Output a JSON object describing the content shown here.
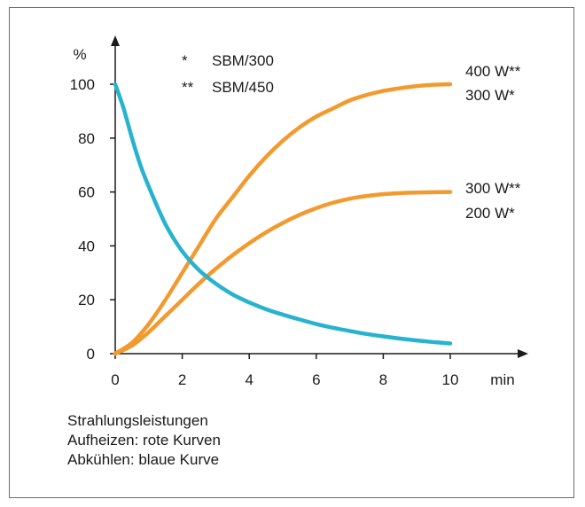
{
  "chart_data": {
    "type": "line",
    "y_unit_label": "%",
    "x_unit_label": "min",
    "xlim": [
      0,
      10
    ],
    "ylim": [
      0,
      100
    ],
    "x_ticks": [
      "0",
      "2",
      "4",
      "6",
      "8",
      "10"
    ],
    "y_ticks": [
      "0",
      "20",
      "40",
      "60",
      "80",
      "100"
    ],
    "legend": [
      {
        "symbol": "*",
        "label": "SBM/300"
      },
      {
        "symbol": "**",
        "label": "SBM/450"
      }
    ],
    "series": [
      {
        "labels": [
          "400 W**",
          "300 W*"
        ],
        "color": "#f39a2f",
        "x": [
          0,
          0.5,
          1,
          1.5,
          2,
          2.5,
          3,
          3.5,
          4,
          4.5,
          5,
          5.5,
          6,
          6.5,
          7,
          7.5,
          8,
          8.5,
          9,
          9.5,
          10
        ],
        "y": [
          0,
          4,
          11,
          20,
          30,
          40,
          50,
          58,
          66,
          73,
          79,
          84,
          88,
          91,
          94,
          96,
          97.5,
          98.5,
          99.3,
          99.8,
          100
        ]
      },
      {
        "labels": [
          "300 W**",
          "200 W*"
        ],
        "color": "#f39a2f",
        "x": [
          0,
          0.5,
          1,
          1.5,
          2,
          2.5,
          3,
          3.5,
          4,
          4.5,
          5,
          5.5,
          6,
          6.5,
          7,
          7.5,
          8,
          8.5,
          9,
          9.5,
          10
        ],
        "y": [
          0,
          3,
          8,
          14,
          20,
          26,
          31.5,
          36.5,
          41,
          45,
          48.5,
          51.5,
          54,
          56,
          57.5,
          58.5,
          59.2,
          59.6,
          59.8,
          59.9,
          60
        ]
      },
      {
        "labels": [],
        "color": "#27b3cf",
        "x": [
          0,
          0.25,
          0.5,
          0.75,
          1,
          1.5,
          2,
          2.5,
          3,
          3.5,
          4,
          4.5,
          5,
          5.5,
          6,
          6.5,
          7,
          7.5,
          8,
          8.5,
          9,
          9.5,
          10
        ],
        "y": [
          100,
          91,
          80,
          70,
          62,
          48,
          38,
          31,
          26,
          22,
          19,
          16.5,
          14.5,
          12.7,
          11,
          9.6,
          8.4,
          7.3,
          6.4,
          5.6,
          4.9,
          4.3,
          3.8
        ]
      }
    ]
  },
  "caption": {
    "line1": "Strahlungsleistungen",
    "line2": "Aufheizen: rote Kurven",
    "line3": "Abkühlen: blaue Kurve"
  },
  "colors": {
    "axis": "#1a1a1a",
    "heating": "#f39a2f",
    "cooling": "#27b3cf",
    "border": "#6b6b6b"
  }
}
